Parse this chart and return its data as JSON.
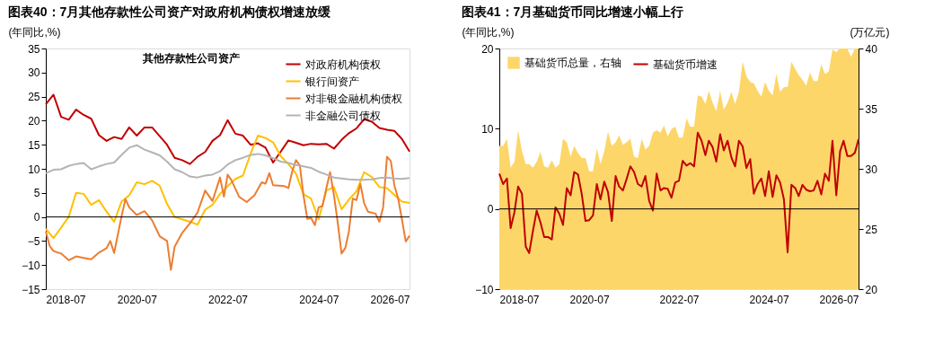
{
  "chart_data": [
    {
      "type": "line",
      "title": "图表40：7月其他存款性公司资产对政府机构债权增速放缓",
      "subtitle": "其他存款性公司资产",
      "ylabel": "(年同比,%)",
      "x": [
        "2018-07",
        "2018-09",
        "2018-11",
        "2019-01",
        "2019-03",
        "2019-05",
        "2019-07",
        "2019-09",
        "2019-11",
        "2020-01",
        "2020-03",
        "2020-05",
        "2020-07",
        "2020-09",
        "2020-11",
        "2021-01",
        "2021-03",
        "2021-05",
        "2021-07",
        "2021-09",
        "2021-11",
        "2022-01",
        "2022-03",
        "2022-05",
        "2022-07",
        "2022-09",
        "2022-11",
        "2023-01",
        "2023-03",
        "2023-05",
        "2023-07",
        "2023-09",
        "2023-11",
        "2024-01",
        "2024-03",
        "2024-05",
        "2024-07",
        "2024-09",
        "2024-11",
        "2025-01",
        "2025-03",
        "2025-05",
        "2025-07",
        "2025-09",
        "2025-11",
        "2026-01",
        "2026-03",
        "2026-05",
        "2026-07"
      ],
      "xlim": [
        "2018-07",
        "2026-07"
      ],
      "xticks": [
        "2018-07",
        "2020-07",
        "2022-07",
        "2024-07",
        "2026-07"
      ],
      "ylim": [
        -15,
        35
      ],
      "yticks": [
        -15,
        -10,
        -5,
        0,
        5,
        10,
        15,
        20,
        25,
        30,
        35
      ],
      "series": [
        {
          "name": "对政府机构债权",
          "color": "#c00000",
          "values": [
            23.4,
            25.4,
            20.8,
            20.2,
            22.3,
            21.2,
            20.4,
            17,
            15.8,
            16.6,
            16.2,
            18.6,
            16.9,
            18.6,
            18.6,
            16.8,
            15,
            12.3,
            11.8,
            11,
            12.5,
            13.5,
            15.8,
            17,
            20.1,
            17.3,
            16.9,
            15,
            15.3,
            14.4,
            11.3,
            13.6,
            15.9,
            15.4,
            14.9,
            15.2,
            15.1,
            15.2,
            14.2,
            16,
            17.4,
            18.4,
            20.3,
            19.8,
            18.5,
            18.1,
            17.9,
            16.2,
            13.6
          ]
        },
        {
          "name": "银行间资产",
          "color": "#ffc000",
          "values": [
            -2.5,
            -4.4,
            -2.2,
            0,
            5,
            4.8,
            2.5,
            3.5,
            1.1,
            -1,
            3.2,
            4.5,
            7.2,
            6.8,
            7.5,
            6.5,
            2.7,
            0,
            -0.5,
            -1,
            -1.6,
            1.5,
            2.5,
            4.8,
            6.4,
            7.9,
            8.6,
            13.1,
            16.9,
            16.4,
            15.5,
            12.6,
            11,
            9,
            4.7,
            3.8,
            -0.5,
            5.5,
            6.2,
            1.6,
            3.6,
            5.3,
            9.3,
            8.3,
            6.2,
            6,
            4.6,
            3.2,
            2.9
          ]
        },
        {
          "name": "对非银金融机构债权",
          "color": "#ed7d31",
          "x": [
            "2018-07",
            "2018-08",
            "2018-09",
            "2018-11",
            "2019-01",
            "2019-03",
            "2019-05",
            "2019-07",
            "2019-09",
            "2019-11",
            "2019-12",
            "2020-01",
            "2020-03",
            "2020-04",
            "2020-05",
            "2020-07",
            "2020-09",
            "2020-11",
            "2021-01",
            "2021-03",
            "2021-04",
            "2021-05",
            "2021-07",
            "2021-09",
            "2021-11",
            "2022-01",
            "2022-03",
            "2022-05",
            "2022-06",
            "2022-07",
            "2022-08",
            "2022-10",
            "2022-12",
            "2023-02",
            "2023-04",
            "2023-05",
            "2023-06",
            "2023-07",
            "2023-10",
            "2023-11",
            "2023-12",
            "2024-01",
            "2024-02",
            "2024-03",
            "2024-04",
            "2024-05",
            "2024-06",
            "2024-07",
            "2024-08",
            "2024-09",
            "2024-10",
            "2024-11",
            "2024-12",
            "2025-01",
            "2025-02",
            "2025-03",
            "2025-04",
            "2025-05",
            "2025-06",
            "2025-07",
            "2025-08",
            "2025-10",
            "2025-11",
            "2025-12",
            "2026-01",
            "2026-02",
            "2026-03",
            "2026-04",
            "2026-05",
            "2026-06",
            "2026-07"
          ],
          "values": [
            -3,
            -6,
            -7.1,
            -7.6,
            -9,
            -8.2,
            -8.5,
            -8.8,
            -7.4,
            -6.5,
            -5,
            -7.5,
            0.2,
            3.7,
            2,
            0.4,
            1.2,
            -0.7,
            -4,
            -5,
            -11,
            -6.2,
            -3.3,
            -1.3,
            0.9,
            5.5,
            3.3,
            8.2,
            4.2,
            8.8,
            7.6,
            4.2,
            3.1,
            4.5,
            7.2,
            6.9,
            9.1,
            6.6,
            6.4,
            6,
            9.4,
            11.8,
            10.7,
            4.5,
            -0.4,
            -0.2,
            -1.7,
            2,
            2.3,
            6,
            9.3,
            4.5,
            -1.1,
            -7.6,
            -6.4,
            -3,
            3.8,
            3.5,
            6.9,
            2.9,
            1.1,
            0.7,
            -1,
            2,
            12.5,
            11.6,
            6.6,
            3.8,
            -0.5,
            -5.1,
            -3.9
          ]
        },
        {
          "name": "非金融公司债权",
          "color": "#b4b4b4",
          "values": [
            9.1,
            9.8,
            9.9,
            10.6,
            11,
            11.2,
            9.9,
            10.5,
            11,
            11.3,
            12.9,
            14.4,
            14.9,
            14,
            13.4,
            12.8,
            11.5,
            9.9,
            9.3,
            8.4,
            8.2,
            8.6,
            8.8,
            9.5,
            10.9,
            11.8,
            12.3,
            12.9,
            13.1,
            12.8,
            12.2,
            11.5,
            11.2,
            10.8,
            10.5,
            10.2,
            9.4,
            8.8,
            8.2,
            8,
            7.8,
            7.7,
            7.7,
            7.8,
            8.1,
            8.2,
            8,
            7.9,
            8.1
          ]
        }
      ],
      "ref_lines": [
        {
          "axis": "y",
          "value": 0,
          "color": "#000000"
        }
      ],
      "legend": "top right",
      "grid": false
    },
    {
      "type": "line",
      "title": "图表41：7月基础货币同比增速小幅上行",
      "ylabel": "(年同比,%)",
      "y2label": "(万亿元)",
      "x": [
        "2018-07",
        "2018-08",
        "2018-09",
        "2018-10",
        "2018-11",
        "2018-12",
        "2019-01",
        "2019-02",
        "2019-03",
        "2019-04",
        "2019-05",
        "2019-06",
        "2019-07",
        "2019-08",
        "2019-09",
        "2019-10",
        "2019-11",
        "2019-12",
        "2020-01",
        "2020-02",
        "2020-03",
        "2020-04",
        "2020-05",
        "2020-06",
        "2020-07",
        "2020-08",
        "2020-09",
        "2020-10",
        "2020-11",
        "2020-12",
        "2021-01",
        "2021-02",
        "2021-03",
        "2021-04",
        "2021-05",
        "2021-06",
        "2021-07",
        "2021-08",
        "2021-09",
        "2021-10",
        "2021-11",
        "2021-12",
        "2022-01",
        "2022-02",
        "2022-03",
        "2022-04",
        "2022-05",
        "2022-06",
        "2022-07",
        "2022-08",
        "2022-09",
        "2022-10",
        "2022-11",
        "2022-12",
        "2023-01",
        "2023-02",
        "2023-03",
        "2023-04",
        "2023-05",
        "2023-06",
        "2023-07",
        "2023-08",
        "2023-09",
        "2023-10",
        "2023-11",
        "2023-12",
        "2024-01",
        "2024-02",
        "2024-03",
        "2024-04",
        "2024-05",
        "2024-06",
        "2024-07",
        "2024-08",
        "2024-09",
        "2024-10",
        "2024-11",
        "2024-12",
        "2025-01",
        "2025-02",
        "2025-03",
        "2025-04",
        "2025-05",
        "2025-06",
        "2025-07",
        "2025-08",
        "2025-09",
        "2025-10",
        "2025-11",
        "2025-12",
        "2026-01",
        "2026-02",
        "2026-03",
        "2026-04",
        "2026-05",
        "2026-06",
        "2026-07"
      ],
      "xlim": [
        "2018-07",
        "2026-07"
      ],
      "xticks": [
        "2018-07",
        "2020-07",
        "2022-07",
        "2024-07",
        "2026-07"
      ],
      "ylim": [
        -10,
        20
      ],
      "yticks": [
        -10,
        0,
        10,
        20
      ],
      "y2lim": [
        20,
        40
      ],
      "y2ticks": [
        20,
        25,
        30,
        35,
        40
      ],
      "series": [
        {
          "name": "基础货币总量，右轴",
          "type": "area",
          "axis": "y2",
          "color": "#fdd66a",
          "values": [
            31.9,
            31.9,
            32.5,
            30.1,
            30.6,
            33.2,
            31.5,
            30.4,
            30.4,
            30.1,
            30.6,
            31.4,
            30.2,
            30.1,
            30.7,
            30.1,
            30.4,
            32.5,
            32.2,
            31,
            31.9,
            31.3,
            30.9,
            30.9,
            29.8,
            29.8,
            31.7,
            30.4,
            31.5,
            33.1,
            31.9,
            32.2,
            32.8,
            32,
            32.2,
            32.5,
            31,
            30.9,
            32.5,
            31.6,
            31.9,
            33,
            33.2,
            33,
            33.6,
            32.7,
            33.3,
            33.5,
            32.6,
            32.6,
            34.2,
            33.5,
            33.5,
            36.1,
            36,
            35.4,
            36.5,
            35.5,
            34.8,
            36.5,
            34.9,
            35.5,
            36.4,
            35.4,
            36.4,
            38.9,
            37.7,
            37.2,
            37.1,
            36.5,
            36,
            37.2,
            36.5,
            36.1,
            37.9,
            36.4,
            36.8,
            36.8,
            38.9,
            38.3,
            37.8,
            37.4,
            36.9,
            38,
            37.3,
            37.3,
            38.7,
            37.9,
            38.1,
            39.9,
            39.7,
            40,
            40,
            40,
            39.3,
            40,
            40
          ]
        },
        {
          "name": "基础货币增速",
          "type": "line",
          "color": "#c00000",
          "values": [
            4.4,
            3.1,
            3.8,
            -2.4,
            -0.4,
            2.8,
            1.9,
            -4.7,
            -5.5,
            -2.7,
            -0.2,
            -1.7,
            -3.5,
            -3.5,
            -3.8,
            0.2,
            -0.6,
            -2,
            2.6,
            1.7,
            4.6,
            4.3,
            1.9,
            -1.5,
            -1.4,
            -0.8,
            3.1,
            1.2,
            3.4,
            2.1,
            -1.5,
            4.1,
            2.8,
            2.3,
            3.7,
            5.3,
            4.6,
            3.1,
            2.8,
            4.1,
            1,
            -0.2,
            4.4,
            2.3,
            2.6,
            2.5,
            1.4,
            3.3,
            3.5,
            6,
            5.4,
            5.7,
            5.3,
            9.5,
            8.5,
            6.7,
            8.5,
            7.7,
            5.9,
            9.3,
            7.3,
            8.5,
            6.4,
            5.3,
            8.5,
            7.8,
            5.1,
            6.2,
            1.9,
            3.1,
            3.8,
            1.6,
            4.7,
            1.5,
            4.2,
            3.3,
            1.2,
            -5.4,
            3,
            2.6,
            1.6,
            3,
            2.4,
            2.2,
            2.3,
            3.5,
            1.8,
            4.4,
            3.5,
            8.5,
            1.7,
            7.2,
            8.5,
            6.6,
            6.6,
            7,
            8.7
          ]
        }
      ],
      "ref_lines": [
        {
          "axis": "y",
          "value": 0,
          "color": "#000000"
        }
      ],
      "legend": "top left",
      "grid": false
    }
  ]
}
